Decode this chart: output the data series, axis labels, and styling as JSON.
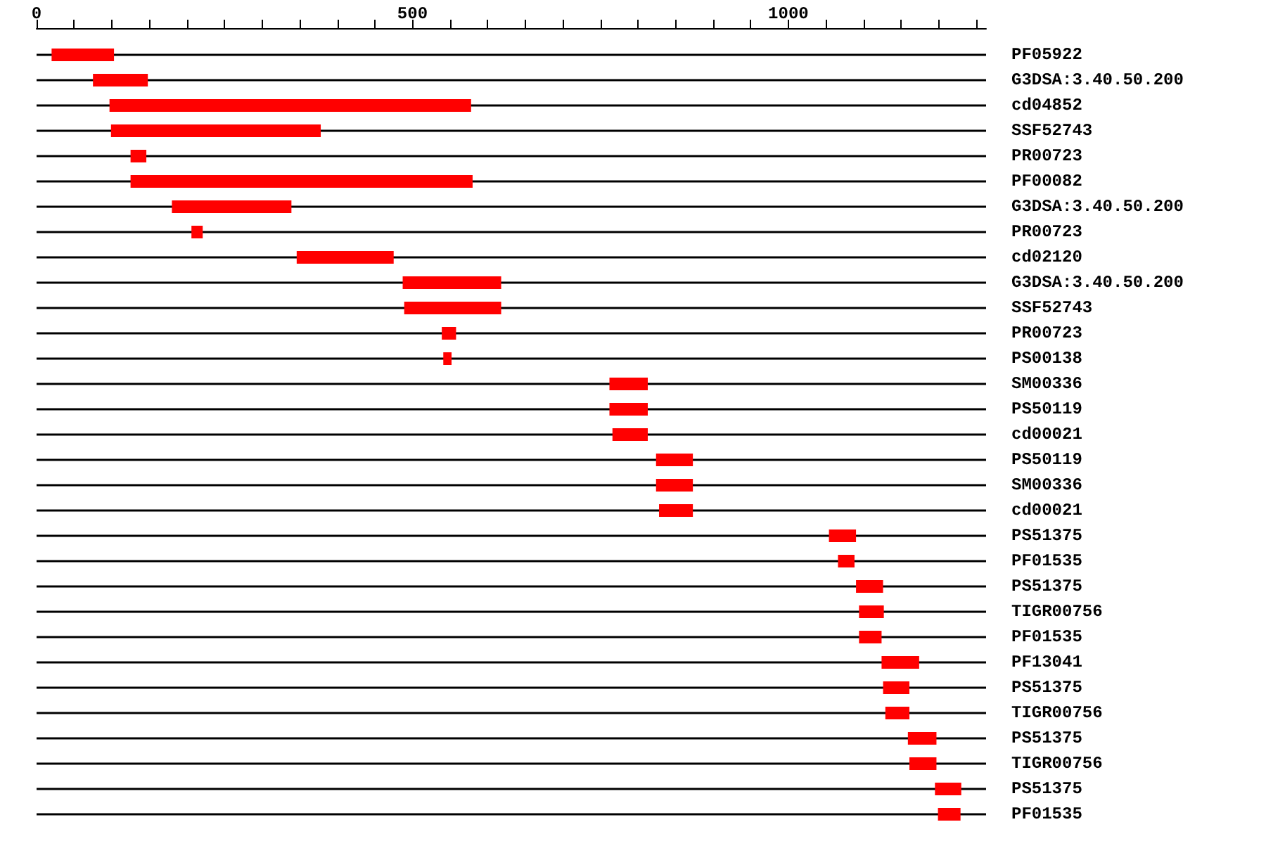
{
  "chart_data": {
    "type": "bar",
    "orientation": "horizontal",
    "color": "#ff0000",
    "grid": "y",
    "categories": [
      "PF05922",
      "G3DSA:3.40.50.200",
      "cd04852",
      "SSF52743",
      "PR00723",
      "PF00082",
      "G3DSA:3.40.50.200",
      "PR00723",
      "cd02120",
      "G3DSA:3.40.50.200",
      "SSF52743",
      "PR00723",
      "PS00138",
      "SM00336",
      "PS50119",
      "cd00021",
      "PS50119",
      "SM00336",
      "cd00021",
      "PS51375",
      "PF01535",
      "PS51375",
      "TIGR00756",
      "PF01535",
      "PF13041",
      "PS51375",
      "TIGR00756",
      "PS51375",
      "TIGR00756",
      "PS51375",
      "PF01535"
    ],
    "base": [
      20,
      75,
      97,
      99,
      125,
      125,
      180,
      206,
      346,
      487,
      489,
      539,
      541,
      762,
      762,
      766,
      824,
      824,
      828,
      1054,
      1066,
      1090,
      1094,
      1094,
      1124,
      1126,
      1129,
      1159,
      1161,
      1195,
      1199
    ],
    "values": [
      83,
      73,
      481,
      279,
      21,
      455,
      159,
      15,
      129,
      131,
      129,
      19,
      11,
      51,
      51,
      47,
      49,
      49,
      45,
      36,
      22,
      36,
      33,
      30,
      50,
      35,
      32,
      38,
      36,
      35,
      30
    ],
    "xlim": [
      0,
      1263
    ],
    "xticks": [
      0,
      {
        "value": 50,
        "label": null
      },
      {
        "value": 100,
        "label": null
      },
      {
        "value": 150,
        "label": null
      },
      {
        "value": 200,
        "label": null
      },
      {
        "value": 250,
        "label": null
      },
      {
        "value": 300,
        "label": null
      },
      {
        "value": 350,
        "label": null
      },
      {
        "value": 400,
        "label": null
      },
      {
        "value": 450,
        "label": null
      },
      500,
      {
        "value": 550,
        "label": null
      },
      {
        "value": 600,
        "label": null
      },
      {
        "value": 650,
        "label": null
      },
      {
        "value": 700,
        "label": null
      },
      {
        "value": 750,
        "label": null
      },
      {
        "value": 800,
        "label": null
      },
      {
        "value": 850,
        "label": null
      },
      {
        "value": 900,
        "label": null
      },
      {
        "value": 950,
        "label": null
      },
      1000,
      {
        "value": 1050,
        "label": null
      },
      {
        "value": 1100,
        "label": null
      },
      {
        "value": 1150,
        "label": null
      },
      {
        "value": 1200,
        "label": null
      },
      {
        "value": 1250,
        "label": null
      }
    ]
  }
}
